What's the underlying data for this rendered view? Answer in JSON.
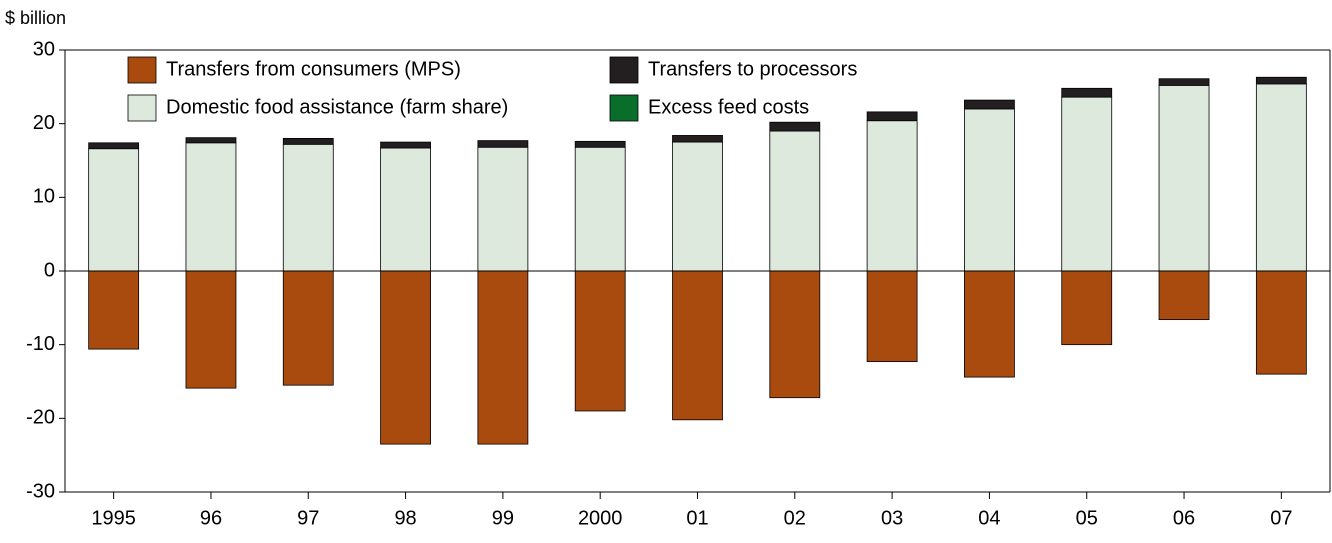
{
  "chart_data": {
    "type": "bar",
    "stacked": true,
    "y_label": "$ billion",
    "categories": [
      "1995",
      "96",
      "97",
      "98",
      "99",
      "2000",
      "01",
      "02",
      "03",
      "04",
      "05",
      "06",
      "07"
    ],
    "series": [
      {
        "name": "Transfers from consumers (MPS)",
        "color": "#a94b0f",
        "values": [
          -10.6,
          -15.9,
          -15.5,
          -23.5,
          -23.5,
          -19.0,
          -20.2,
          -17.2,
          -12.3,
          -14.4,
          -10.0,
          -6.6,
          -14.0
        ]
      },
      {
        "name": "Domestic food assistance (farm share)",
        "color": "#dde9dc",
        "values": [
          16.6,
          17.4,
          17.2,
          16.7,
          16.8,
          16.8,
          17.5,
          19.0,
          20.4,
          22.0,
          23.6,
          25.2,
          25.4
        ]
      },
      {
        "name": "Transfers to processors",
        "color": "#231f20",
        "values": [
          0.8,
          0.7,
          0.8,
          0.8,
          0.9,
          0.8,
          0.9,
          1.2,
          1.2,
          1.2,
          1.2,
          0.9,
          0.9
        ]
      },
      {
        "name": "Excess feed costs",
        "color": "#0a6e2b",
        "values": [
          0,
          0,
          0,
          0,
          0,
          0,
          0,
          0,
          0,
          0,
          0,
          0,
          0
        ]
      }
    ],
    "ylim": [
      -30,
      30
    ],
    "yticks": [
      -30,
      -20,
      -10,
      0,
      10,
      20,
      30
    ]
  }
}
